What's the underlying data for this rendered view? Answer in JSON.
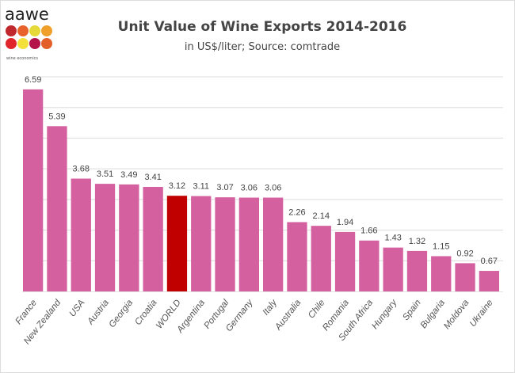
{
  "logo": {
    "name": "aawe",
    "tagline": "wine economics",
    "dot_colors": [
      "#c0282d",
      "#e8612a",
      "#e6d93a",
      "#f0a02a",
      "#e0262a",
      "#f3e03a",
      "#b3154a",
      "#e4602b"
    ]
  },
  "chart_data": {
    "type": "bar",
    "title": "Unit Value of Wine Exports 2014-2016",
    "subtitle": "in US$/liter; Source: comtrade",
    "categories": [
      "France",
      "New Zealand",
      "USA",
      "Austria",
      "Georgia",
      "Croatia",
      "WORLD",
      "Argentina",
      "Portugal",
      "Germany",
      "Italy",
      "Australia",
      "Chile",
      "Romania",
      "South Africa",
      "Hungary",
      "Spain",
      "Bulgaria",
      "Moldova",
      "Ukraine"
    ],
    "values": [
      6.59,
      5.39,
      3.68,
      3.51,
      3.49,
      3.41,
      3.12,
      3.11,
      3.07,
      3.06,
      3.06,
      2.26,
      2.14,
      1.94,
      1.66,
      1.43,
      1.32,
      1.15,
      0.92,
      0.67
    ],
    "data_labels": [
      "6.59",
      "5.39",
      "3.68",
      "3.51",
      "3.49",
      "3.41",
      "3.12",
      "3.11",
      "3.07",
      "3.06",
      "3.06",
      "2.26",
      "2.14",
      "1.94",
      "1.66",
      "1.43",
      "1.32",
      "1.15",
      "0.92",
      "0.67"
    ],
    "ylim": [
      0,
      7
    ],
    "grid": true,
    "legend": "none",
    "bar_color": "#d4609f",
    "highlight_category": "WORLD",
    "highlight_color": "#c00000"
  }
}
